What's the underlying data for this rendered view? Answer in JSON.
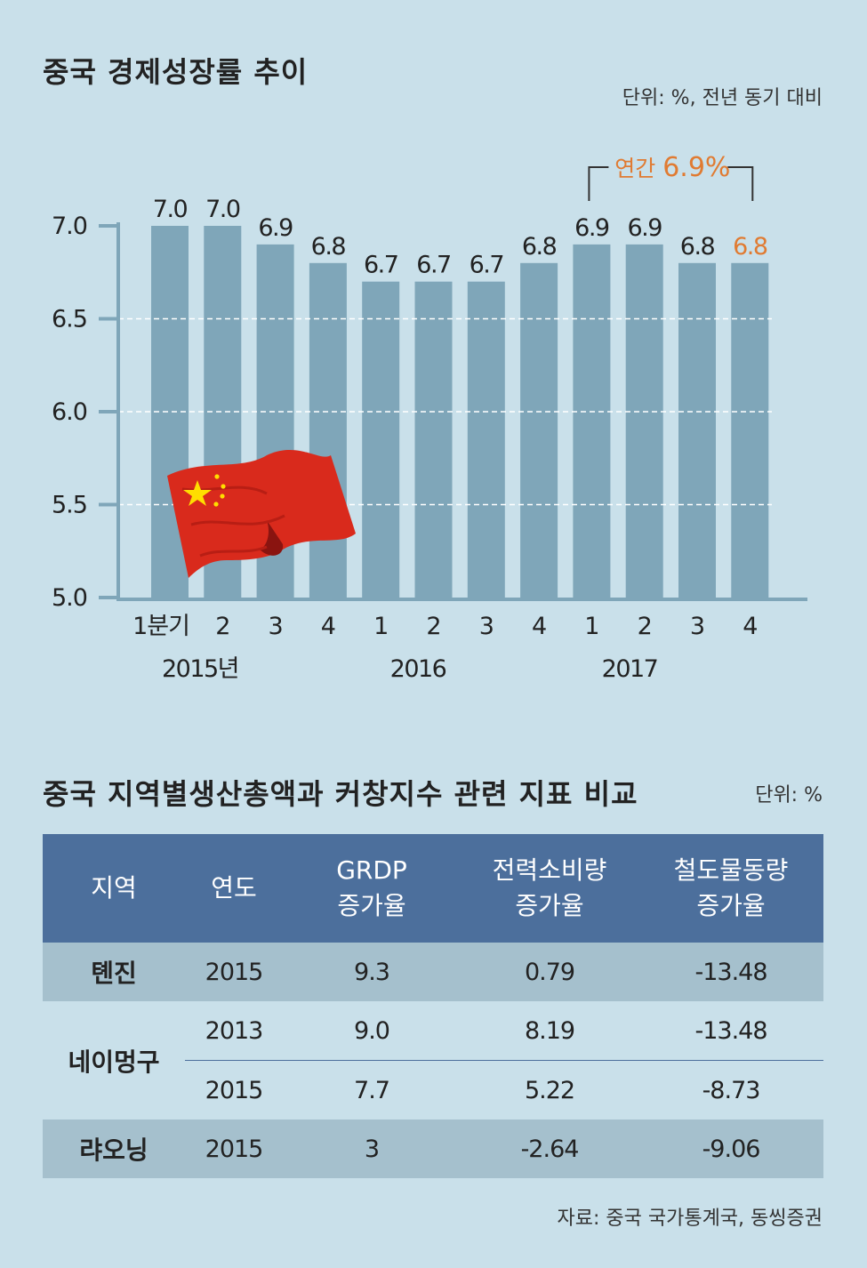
{
  "title": "중국 경제성장률 추이",
  "unit": "단위: %, 전년 동기 대비",
  "chart_data": {
    "type": "bar",
    "categories": [
      "1분기",
      "2",
      "3",
      "4",
      "1",
      "2",
      "3",
      "4",
      "1",
      "2",
      "3",
      "4"
    ],
    "years": [
      "2015년",
      "2016",
      "2017"
    ],
    "values": [
      7.0,
      7.0,
      6.9,
      6.8,
      6.7,
      6.7,
      6.7,
      6.8,
      6.9,
      6.9,
      6.8,
      6.8
    ],
    "value_labels": [
      "7.0",
      "7.0",
      "6.9",
      "6.8",
      "6.7",
      "6.7",
      "6.7",
      "6.8",
      "6.9",
      "6.9",
      "6.8",
      "6.8"
    ],
    "highlight_index": 11,
    "ylim": [
      5.0,
      7.0
    ],
    "yticks": [
      "7.0",
      "6.5",
      "6.0",
      "5.5",
      "5.0"
    ],
    "grid": "dashed",
    "annual_prefix": "연간",
    "annual_value": "6.9%",
    "colors": {
      "bar": "#7fa6b9",
      "highlight": "#e07b32",
      "axis": "#7fa6b9"
    }
  },
  "table": {
    "title": "중국 지역별생산총액과 커창지수 관련 지표 비교",
    "unit": "단위: %",
    "headers": [
      "지역",
      "연도",
      "GRDP\n증가율",
      "전력소비량\n증가율",
      "철도물동량\n증가율"
    ],
    "rows": [
      {
        "region": "톈진",
        "cells": [
          [
            "2015",
            "9.3",
            "0.79",
            "-13.48"
          ]
        ]
      },
      {
        "region": "네이멍구",
        "cells": [
          [
            "2013",
            "9.0",
            "8.19",
            "-13.48"
          ],
          [
            "2015",
            "7.7",
            "5.22",
            "-8.73"
          ]
        ]
      },
      {
        "region": "랴오닝",
        "cells": [
          [
            "2015",
            "3",
            "-2.64",
            "-9.06"
          ]
        ]
      }
    ]
  },
  "source": "자료: 중국 국가통계국, 동씽증권"
}
